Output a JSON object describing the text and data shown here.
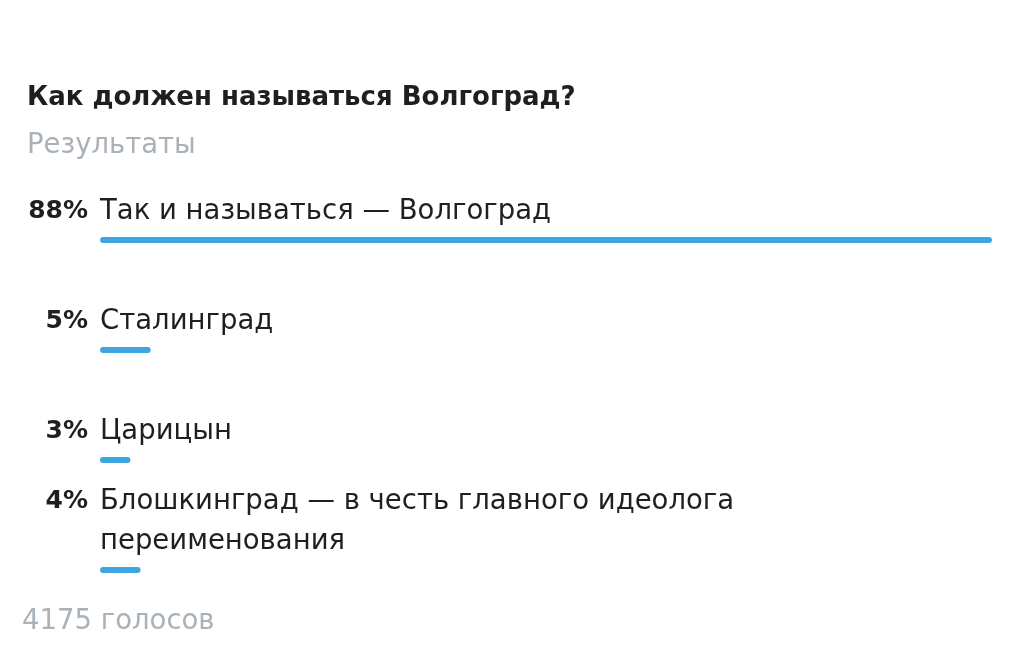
{
  "chart_data": {
    "type": "bar",
    "orientation": "horizontal",
    "title": "Как должен называться Волгоград?",
    "subtitle": "Результаты",
    "categories": [
      "Так и называться — Волгоград",
      "Сталинград",
      "Царицын",
      "Блошкинград — в честь главного идеолога переименования"
    ],
    "values": [
      88,
      5,
      3,
      4
    ],
    "value_labels": [
      "88%",
      "5%",
      "3%",
      "4%"
    ],
    "color": "#3fa5e0",
    "tick_labels": "y",
    "annotations": [
      "4175 голосов"
    ]
  }
}
